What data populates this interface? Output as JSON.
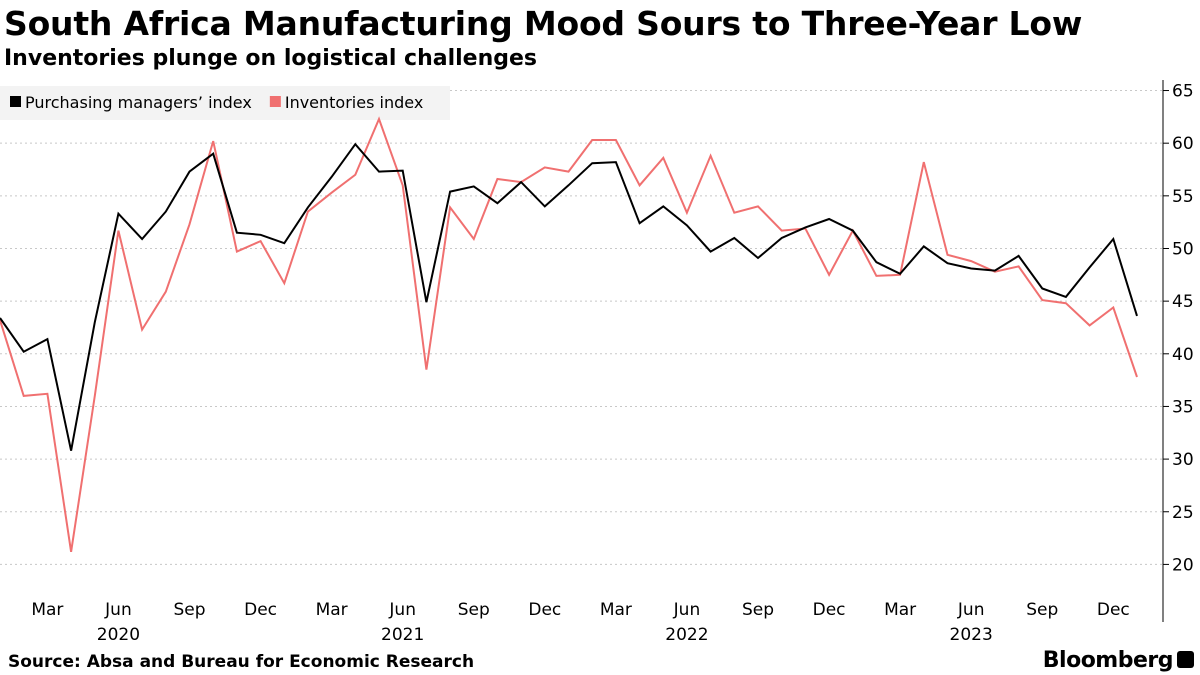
{
  "chart_data": {
    "type": "line",
    "title": "South Africa Manufacturing Mood Sours to Three-Year Low",
    "subtitle": "Inventories plunge on logistical challenges",
    "x": [
      "2020-01",
      "2020-02",
      "2020-03",
      "2020-04",
      "2020-05",
      "2020-06",
      "2020-07",
      "2020-08",
      "2020-09",
      "2020-10",
      "2020-11",
      "2020-12",
      "2021-01",
      "2021-02",
      "2021-03",
      "2021-04",
      "2021-05",
      "2021-06",
      "2021-07",
      "2021-08",
      "2021-09",
      "2021-10",
      "2021-11",
      "2021-12",
      "2022-01",
      "2022-02",
      "2022-03",
      "2022-04",
      "2022-05",
      "2022-06",
      "2022-07",
      "2022-08",
      "2022-09",
      "2022-10",
      "2022-11",
      "2022-12",
      "2023-01",
      "2023-02",
      "2023-03",
      "2023-04",
      "2023-05",
      "2023-06",
      "2023-07",
      "2023-08",
      "2023-09",
      "2023-10",
      "2023-11",
      "2023-12",
      "2024-01"
    ],
    "series": [
      {
        "name": "Purchasing managers’ index",
        "color": "#000000",
        "values": [
          43.4,
          40.2,
          41.4,
          30.8,
          43.0,
          53.3,
          50.9,
          53.5,
          57.3,
          59.0,
          51.5,
          51.3,
          50.5,
          53.9,
          56.8,
          59.9,
          57.3,
          57.4,
          44.9,
          55.4,
          55.9,
          54.3,
          56.3,
          54.0,
          56.0,
          58.1,
          58.2,
          52.4,
          54.0,
          52.2,
          49.7,
          51.0,
          49.1,
          51.0,
          52.0,
          52.8,
          51.7,
          48.7,
          47.6,
          50.2,
          48.6,
          48.1,
          47.9,
          49.3,
          46.2,
          45.4,
          48.2,
          50.9,
          43.6
        ]
      },
      {
        "name": "Inventories index",
        "color": "#f07070",
        "values": [
          43.2,
          36.0,
          36.2,
          21.2,
          36.0,
          51.7,
          42.3,
          45.9,
          52.3,
          60.2,
          49.7,
          50.7,
          46.7,
          53.5,
          55.3,
          57.0,
          62.3,
          56.0,
          38.5,
          53.9,
          50.9,
          56.6,
          56.3,
          57.7,
          57.3,
          60.3,
          60.3,
          56.0,
          58.6,
          53.4,
          58.8,
          53.4,
          54.0,
          51.7,
          51.9,
          47.5,
          51.7,
          47.4,
          47.5,
          58.2,
          49.4,
          48.8,
          47.8,
          48.3,
          45.1,
          44.8,
          42.7,
          44.4,
          37.8
        ]
      }
    ],
    "ylim": [
      17,
      66
    ],
    "yticks": [
      20,
      25,
      30,
      35,
      40,
      45,
      50,
      55,
      60,
      65
    ],
    "xticks": [
      {
        "index": 2,
        "label": "Mar"
      },
      {
        "index": 5,
        "label": "Jun"
      },
      {
        "index": 8,
        "label": "Sep"
      },
      {
        "index": 11,
        "label": "Dec"
      },
      {
        "index": 14,
        "label": "Mar"
      },
      {
        "index": 17,
        "label": "Jun"
      },
      {
        "index": 20,
        "label": "Sep"
      },
      {
        "index": 23,
        "label": "Dec"
      },
      {
        "index": 26,
        "label": "Mar"
      },
      {
        "index": 29,
        "label": "Jun"
      },
      {
        "index": 32,
        "label": "Sep"
      },
      {
        "index": 35,
        "label": "Dec"
      },
      {
        "index": 38,
        "label": "Mar"
      },
      {
        "index": 41,
        "label": "Jun"
      },
      {
        "index": 44,
        "label": "Sep"
      },
      {
        "index": 47,
        "label": "Dec"
      }
    ],
    "year_labels": [
      {
        "index": 5,
        "label": "2020"
      },
      {
        "index": 17,
        "label": "2021"
      },
      {
        "index": 29,
        "label": "2022"
      },
      {
        "index": 41,
        "label": "2023"
      }
    ],
    "grid": "horizontal-dotted",
    "legend": "top-left",
    "xlabel": "",
    "ylabel": ""
  },
  "footer": {
    "source": "Source: Absa and Bureau for Economic Research",
    "brand": "Bloomberg"
  }
}
